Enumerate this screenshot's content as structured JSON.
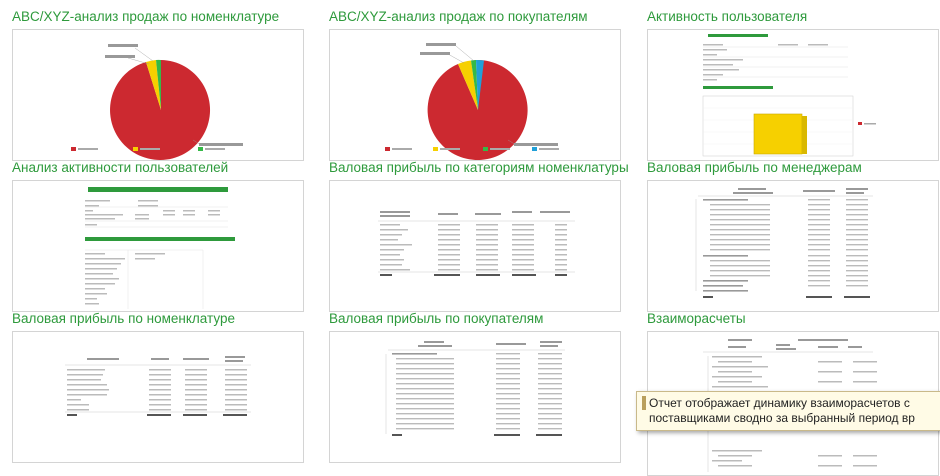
{
  "reports": [
    {
      "title": "ABC/XYZ-анализ продаж по номенклатуре"
    },
    {
      "title": "ABC/XYZ-анализ продаж по покупателям"
    },
    {
      "title": "Активность пользователя"
    },
    {
      "title": "Анализ активности пользователей"
    },
    {
      "title": "Валовая прибыль по категориям номенклатуры"
    },
    {
      "title": "Валовая прибыль по менеджерам"
    },
    {
      "title": "Валовая прибыль по номенклатуре"
    },
    {
      "title": "Валовая прибыль по покупателям"
    },
    {
      "title": "Взаиморасчеты"
    }
  ],
  "tooltip": {
    "line1": "Отчет отображает динамику взаиморасчетов с",
    "line2": "поставщиками сводно за выбранный период вр"
  },
  "colors": {
    "title_green": "#2e9a3c",
    "pie_red": "#cc2930",
    "pie_yellow": "#f6d000",
    "pie_green": "#35b947",
    "pie_cyan": "#20a0d8"
  }
}
